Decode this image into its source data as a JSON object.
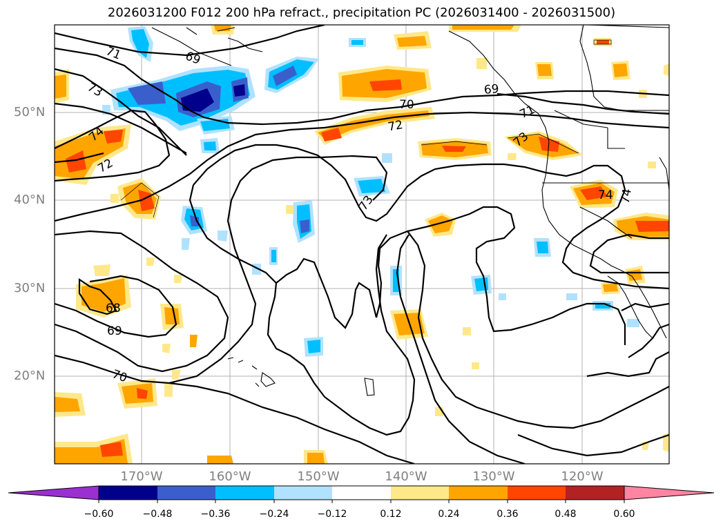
{
  "title": "2026031200 F012 200 hPa refract., precipitation PC (2026031400 - 2026031500)",
  "map": {
    "lat_labels": [
      "50°N",
      "40°N",
      "30°N",
      "20°N"
    ],
    "lon_labels": [
      "170°W",
      "160°W",
      "150°W",
      "140°W",
      "130°W",
      "120°W"
    ],
    "contour_labels": [
      "71",
      "69",
      "73",
      "74",
      "72",
      "70",
      "72",
      "69",
      "71",
      "73",
      "73",
      "74",
      "74",
      "68",
      "69",
      "70"
    ]
  },
  "colorbar": {
    "colors": [
      "#9b30d0",
      "#00008b",
      "#3a5fcd",
      "#00bfff",
      "#b0e2ff",
      "#ffffff",
      "#ffe88a",
      "#ffa500",
      "#ff4500",
      "#b22222",
      "#ff85a2"
    ],
    "ticks": [
      "−0.60",
      "−0.48",
      "−0.36",
      "−0.24",
      "−0.12",
      "0.12",
      "0.24",
      "0.36",
      "0.48",
      "0.60"
    ]
  }
}
